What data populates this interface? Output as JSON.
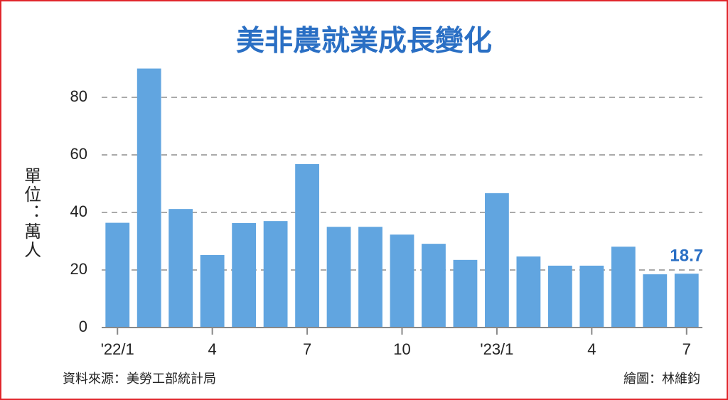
{
  "chart_data": {
    "type": "bar",
    "title": "美非農就業成長變化",
    "y_label": "單位：萬人",
    "source": "資料來源：美勞工部統計局",
    "credit": "繪圖：林維鈞",
    "categories": [
      "'22/1",
      null,
      null,
      "4",
      null,
      null,
      "7",
      null,
      null,
      "10",
      null,
      null,
      "'23/1",
      null,
      null,
      "4",
      null,
      null,
      "7"
    ],
    "values": [
      36.4,
      90,
      41.2,
      25.2,
      36.3,
      37,
      56.8,
      35,
      35,
      32.3,
      29.1,
      23.5,
      46.7,
      24.7,
      21.5,
      21.5,
      28.1,
      18.5,
      18.7
    ],
    "value_labels": [
      null,
      null,
      null,
      null,
      null,
      null,
      null,
      null,
      null,
      null,
      null,
      null,
      null,
      null,
      null,
      null,
      null,
      null,
      "18.7"
    ],
    "color": "#61a5e0",
    "ylim": [
      0,
      90
    ],
    "yticks": [
      0,
      20,
      40,
      60,
      80
    ],
    "grid": true
  }
}
